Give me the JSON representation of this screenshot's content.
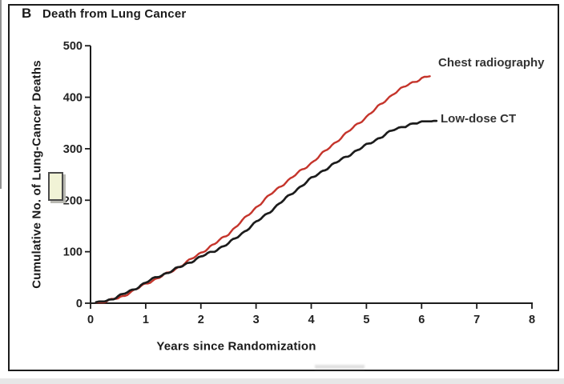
{
  "figure": {
    "panel_letter": "B",
    "title": "Death from Lung Cancer"
  },
  "chart_data": {
    "type": "line",
    "title": "Death from Lung Cancer",
    "xlabel": "Years since Randomization",
    "ylabel": "Cumulative No. of Lung-Cancer Deaths",
    "xlim": [
      0,
      8
    ],
    "ylim": [
      0,
      500
    ],
    "x_ticks": [
      0,
      1,
      2,
      3,
      4,
      5,
      6,
      7,
      8
    ],
    "y_ticks": [
      0,
      100,
      200,
      300,
      400,
      500
    ],
    "grid": false,
    "legend_position": "inline-end-of-line-labels",
    "axis_color": "#1c1c1c",
    "series": [
      {
        "name": "Chest radiography",
        "color": "#c5342b",
        "x": [
          0.1,
          0.25,
          0.5,
          0.75,
          1,
          1.25,
          1.5,
          1.75,
          2,
          2.25,
          2.5,
          2.75,
          3,
          3.25,
          3.5,
          3.75,
          4,
          4.25,
          4.5,
          4.75,
          5,
          5.25,
          5.5,
          5.75,
          6,
          6.15
        ],
        "values": [
          0,
          2,
          10,
          22,
          38,
          50,
          64,
          80,
          98,
          115,
          135,
          160,
          186,
          210,
          232,
          252,
          272,
          295,
          318,
          340,
          362,
          385,
          408,
          424,
          437,
          441
        ]
      },
      {
        "name": "Low-dose CT",
        "color": "#1c1c1c",
        "x": [
          0.1,
          0.25,
          0.5,
          0.75,
          1,
          1.25,
          1.5,
          1.75,
          2,
          2.25,
          2.5,
          2.75,
          3,
          3.25,
          3.5,
          3.75,
          4,
          4.25,
          4.5,
          4.75,
          5,
          5.25,
          5.5,
          5.75,
          6,
          6.27
        ],
        "values": [
          0,
          3,
          13,
          25,
          40,
          53,
          64,
          77,
          90,
          102,
          116,
          136,
          157,
          178,
          200,
          222,
          242,
          260,
          276,
          292,
          307,
          322,
          337,
          346,
          351,
          354
        ]
      }
    ]
  },
  "artifacts": {
    "highlight_box_color": "#f1f3d6"
  }
}
